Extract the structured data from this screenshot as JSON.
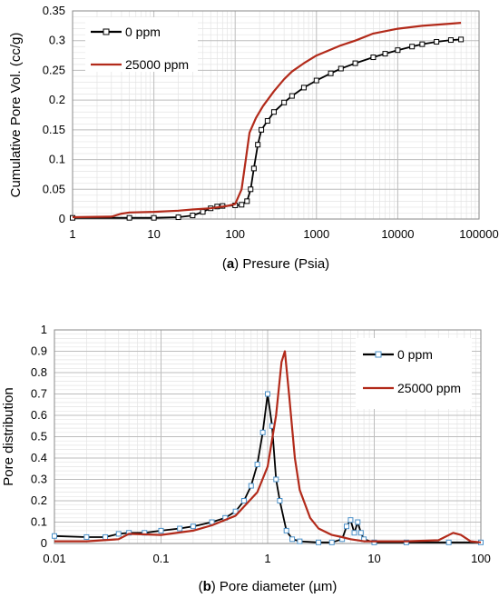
{
  "chart_data": [
    {
      "type": "line",
      "panel_label": "a",
      "xlabel": "Presure (Psia)",
      "ylabel": "Cumulative Pore Vol. (cc/g)",
      "x_scale": "log",
      "xlim": [
        1,
        100000
      ],
      "ylim": [
        0,
        0.35
      ],
      "x_ticks": [
        "1",
        "10",
        "100",
        "1000",
        "10000",
        "100000"
      ],
      "y_ticks": [
        "0",
        "0.05",
        "0.1",
        "0.15",
        "0.2",
        "0.25",
        "0.3",
        "0.35"
      ],
      "grid": true,
      "legend": "top-left",
      "series": [
        {
          "name": "0 ppm",
          "color": "#000000",
          "marker": "open-square",
          "points": [
            [
              1,
              0.002
            ],
            [
              5,
              0.002
            ],
            [
              10,
              0.002
            ],
            [
              20,
              0.003
            ],
            [
              30,
              0.006
            ],
            [
              40,
              0.012
            ],
            [
              50,
              0.018
            ],
            [
              60,
              0.021
            ],
            [
              70,
              0.022
            ],
            [
              100,
              0.023
            ],
            [
              120,
              0.024
            ],
            [
              140,
              0.03
            ],
            [
              155,
              0.05
            ],
            [
              170,
              0.085
            ],
            [
              190,
              0.125
            ],
            [
              210,
              0.15
            ],
            [
              250,
              0.165
            ],
            [
              300,
              0.18
            ],
            [
              400,
              0.196
            ],
            [
              500,
              0.207
            ],
            [
              700,
              0.221
            ],
            [
              1000,
              0.233
            ],
            [
              1500,
              0.245
            ],
            [
              2000,
              0.253
            ],
            [
              3000,
              0.262
            ],
            [
              5000,
              0.272
            ],
            [
              7000,
              0.278
            ],
            [
              10000,
              0.284
            ],
            [
              15000,
              0.29
            ],
            [
              20000,
              0.294
            ],
            [
              30000,
              0.298
            ],
            [
              45000,
              0.301
            ],
            [
              60000,
              0.302
            ]
          ]
        },
        {
          "name": "25000 ppm",
          "color": "#b22a1a",
          "marker": "none",
          "points": [
            [
              1,
              0.003
            ],
            [
              3,
              0.004
            ],
            [
              4,
              0.009
            ],
            [
              5,
              0.011
            ],
            [
              10,
              0.012
            ],
            [
              20,
              0.014
            ],
            [
              30,
              0.016
            ],
            [
              50,
              0.018
            ],
            [
              80,
              0.022
            ],
            [
              100,
              0.025
            ],
            [
              120,
              0.05
            ],
            [
              135,
              0.1
            ],
            [
              150,
              0.145
            ],
            [
              180,
              0.17
            ],
            [
              220,
              0.19
            ],
            [
              300,
              0.215
            ],
            [
              400,
              0.235
            ],
            [
              500,
              0.248
            ],
            [
              700,
              0.262
            ],
            [
              1000,
              0.275
            ],
            [
              2000,
              0.292
            ],
            [
              3000,
              0.3
            ],
            [
              5000,
              0.312
            ],
            [
              10000,
              0.32
            ],
            [
              20000,
              0.325
            ],
            [
              40000,
              0.328
            ],
            [
              60000,
              0.33
            ]
          ]
        }
      ]
    },
    {
      "type": "line",
      "panel_label": "b",
      "xlabel": "Pore diameter (µm)",
      "ylabel": "Pore distribution",
      "x_scale": "log",
      "xlim": [
        0.01,
        100
      ],
      "ylim": [
        0,
        1
      ],
      "x_ticks": [
        "0.01",
        "0.1",
        "1",
        "10",
        "100"
      ],
      "y_ticks": [
        "0",
        "0.1",
        "0.2",
        "0.3",
        "0.4",
        "0.5",
        "0.6",
        "0.7",
        "0.8",
        "0.9",
        "1"
      ],
      "grid": true,
      "legend": "top-right",
      "series": [
        {
          "name": "0 ppm",
          "color": "#000000",
          "marker_color": "#4a90c8",
          "marker": "open-square",
          "points": [
            [
              0.01,
              0.035
            ],
            [
              0.02,
              0.03
            ],
            [
              0.03,
              0.03
            ],
            [
              0.04,
              0.045
            ],
            [
              0.05,
              0.05
            ],
            [
              0.07,
              0.05
            ],
            [
              0.1,
              0.06
            ],
            [
              0.15,
              0.07
            ],
            [
              0.2,
              0.08
            ],
            [
              0.3,
              0.1
            ],
            [
              0.4,
              0.12
            ],
            [
              0.5,
              0.15
            ],
            [
              0.6,
              0.2
            ],
            [
              0.7,
              0.27
            ],
            [
              0.8,
              0.37
            ],
            [
              0.9,
              0.52
            ],
            [
              1,
              0.7
            ],
            [
              1.1,
              0.55
            ],
            [
              1.2,
              0.3
            ],
            [
              1.3,
              0.2
            ],
            [
              1.5,
              0.06
            ],
            [
              1.7,
              0.02
            ],
            [
              2,
              0.01
            ],
            [
              3,
              0.005
            ],
            [
              4,
              0.005
            ],
            [
              5,
              0.02
            ],
            [
              5.5,
              0.08
            ],
            [
              6,
              0.11
            ],
            [
              6.5,
              0.05
            ],
            [
              7,
              0.1
            ],
            [
              7.5,
              0.05
            ],
            [
              8,
              0.02
            ],
            [
              10,
              0.005
            ],
            [
              20,
              0.005
            ],
            [
              50,
              0.005
            ],
            [
              100,
              0.005
            ]
          ]
        },
        {
          "name": "25000 ppm",
          "color": "#b22a1a",
          "marker": "none",
          "points": [
            [
              0.01,
              0.01
            ],
            [
              0.02,
              0.01
            ],
            [
              0.04,
              0.02
            ],
            [
              0.05,
              0.045
            ],
            [
              0.1,
              0.04
            ],
            [
              0.2,
              0.06
            ],
            [
              0.3,
              0.085
            ],
            [
              0.5,
              0.13
            ],
            [
              0.8,
              0.24
            ],
            [
              1,
              0.36
            ],
            [
              1.2,
              0.6
            ],
            [
              1.35,
              0.85
            ],
            [
              1.45,
              0.9
            ],
            [
              1.6,
              0.68
            ],
            [
              1.8,
              0.4
            ],
            [
              2,
              0.25
            ],
            [
              2.5,
              0.12
            ],
            [
              3,
              0.07
            ],
            [
              4,
              0.04
            ],
            [
              5,
              0.03
            ],
            [
              6,
              0.02
            ],
            [
              8,
              0.01
            ],
            [
              20,
              0.01
            ],
            [
              40,
              0.015
            ],
            [
              55,
              0.05
            ],
            [
              65,
              0.04
            ],
            [
              80,
              0.01
            ],
            [
              100,
              0.005
            ]
          ]
        }
      ]
    }
  ]
}
